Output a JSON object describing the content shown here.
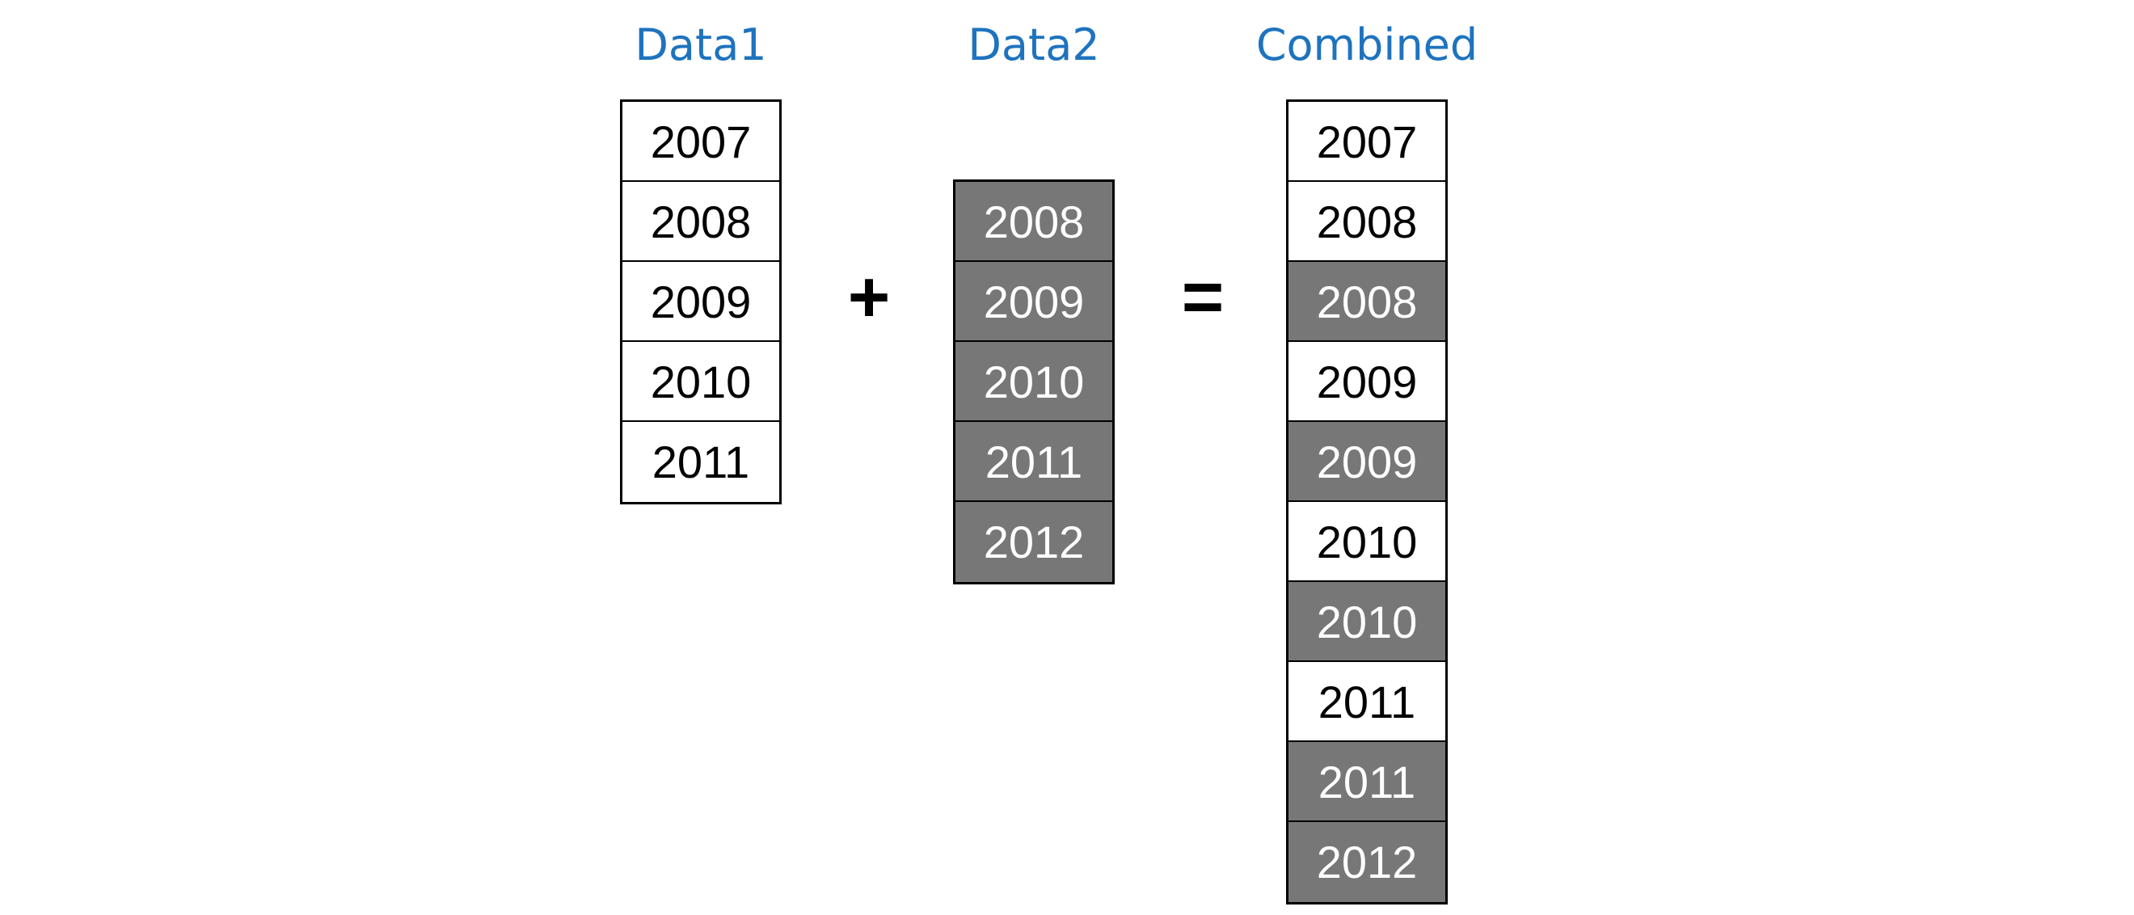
{
  "columns": {
    "data1": {
      "title": "Data1",
      "cells": [
        {
          "year": "2007",
          "source": "data1"
        },
        {
          "year": "2008",
          "source": "data1"
        },
        {
          "year": "2009",
          "source": "data1"
        },
        {
          "year": "2010",
          "source": "data1"
        },
        {
          "year": "2011",
          "source": "data1"
        }
      ]
    },
    "data2": {
      "title": "Data2",
      "cells": [
        {
          "year": "2008",
          "source": "data2"
        },
        {
          "year": "2009",
          "source": "data2"
        },
        {
          "year": "2010",
          "source": "data2"
        },
        {
          "year": "2011",
          "source": "data2"
        },
        {
          "year": "2012",
          "source": "data2"
        }
      ]
    },
    "combined": {
      "title": "Combined",
      "cells": [
        {
          "year": "2007",
          "source": "data1"
        },
        {
          "year": "2008",
          "source": "data1"
        },
        {
          "year": "2008",
          "source": "data2"
        },
        {
          "year": "2009",
          "source": "data1"
        },
        {
          "year": "2009",
          "source": "data2"
        },
        {
          "year": "2010",
          "source": "data1"
        },
        {
          "year": "2010",
          "source": "data2"
        },
        {
          "year": "2011",
          "source": "data1"
        },
        {
          "year": "2011",
          "source": "data2"
        },
        {
          "year": "2012",
          "source": "data2"
        }
      ]
    }
  },
  "operators": {
    "plus": "+",
    "equals": "="
  },
  "colors": {
    "title": "#1e73be",
    "data1_fill": "#ffffff",
    "data2_fill": "#777777",
    "border": "#000000"
  }
}
